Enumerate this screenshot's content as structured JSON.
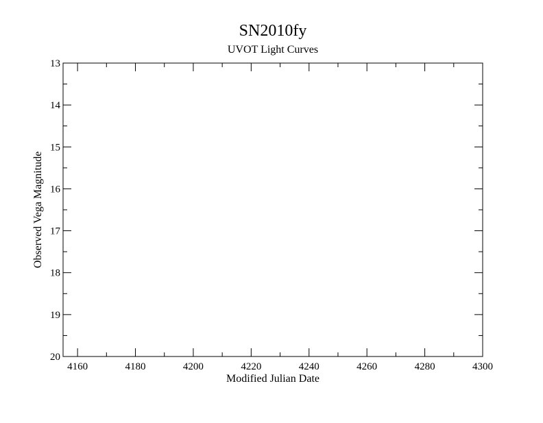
{
  "chart_data": {
    "type": "scatter",
    "title": "SN2010fy",
    "subtitle": "UVOT Light Curves",
    "xlabel": "Modified Julian Date",
    "ylabel": "Observed Vega Magnitude",
    "xlim": [
      4155,
      4300
    ],
    "ylim": [
      20,
      13
    ],
    "y_inverted": true,
    "x_major_ticks": [
      4160,
      4180,
      4200,
      4220,
      4240,
      4260,
      4280,
      4300
    ],
    "x_minor_step": 10,
    "y_major_ticks": [
      13,
      14,
      15,
      16,
      17,
      18,
      19,
      20
    ],
    "y_minor_step": 0.5,
    "x_tick_labels": [
      "4160",
      "4180",
      "4200",
      "4220",
      "4240",
      "4260",
      "4280",
      "4300"
    ],
    "y_tick_labels": [
      "13",
      "14",
      "15",
      "16",
      "17",
      "18",
      "19",
      "20"
    ],
    "grid": false,
    "series": []
  }
}
